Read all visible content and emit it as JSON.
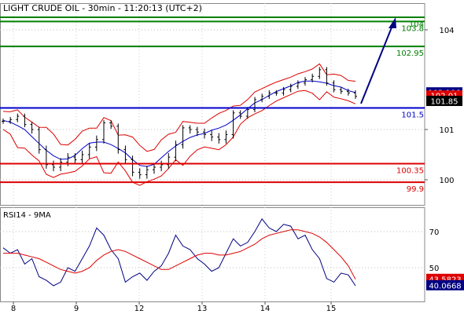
{
  "title": "LIGHT CRUDE OIL - 30min - 11:20:13 (UTC+2)",
  "chart_data": [
    {
      "type": "candlestick",
      "title": "LIGHT CRUDE OIL - 30min - 11:20:13 (UTC+2)",
      "y_ticks": [
        100,
        101,
        104
      ],
      "ylim": [
        99.7,
        104.3
      ],
      "x_ticks": [
        "8",
        "9",
        "12",
        "13",
        "14",
        "15"
      ],
      "levels": [
        {
          "label": "104",
          "value": 104.3,
          "color": "#008000"
        },
        {
          "label": "103.8",
          "value": 104.2,
          "color": "#008000"
        },
        {
          "label": "102.95",
          "value": 103.5,
          "color": "#008000"
        },
        {
          "label": "101.5",
          "value": 101.65,
          "color": "#0000cc"
        },
        {
          "label": "100.35",
          "value": 100.32,
          "color": "#dd0000"
        },
        {
          "label": "99.9",
          "value": 99.95,
          "color": "#dd0000"
        }
      ],
      "price_badges": [
        {
          "label": "102.106",
          "value": 102.106,
          "bg": "#000080"
        },
        {
          "label": "102.01",
          "value": 102.01,
          "bg": "#dd0000"
        },
        {
          "label": "101.85",
          "value": 101.85,
          "bg": "#000000"
        }
      ],
      "close_series": [
        101.25,
        101.3,
        101.4,
        101.15,
        101.0,
        100.6,
        100.3,
        100.25,
        100.35,
        100.45,
        100.4,
        100.5,
        100.65,
        100.8,
        101.2,
        101.1,
        100.6,
        100.4,
        100.15,
        100.1,
        100.2,
        100.25,
        100.3,
        100.45,
        100.7,
        101.05,
        101.0,
        100.95,
        100.9,
        100.85,
        100.8,
        100.9,
        101.5,
        101.4,
        101.6,
        101.9,
        102.0,
        102.1,
        102.1,
        102.2,
        102.3,
        102.4,
        102.5,
        102.6,
        102.8,
        102.4,
        102.2,
        102.15,
        102.1,
        102.0
      ]
    },
    {
      "type": "line",
      "title": "RSI14 - 9MA",
      "y_ticks": [
        50,
        70
      ],
      "ylim": [
        39,
        80
      ],
      "x_ticks": [
        "8",
        "9",
        "12",
        "13",
        "14",
        "15"
      ],
      "series": [
        {
          "name": "RSI14",
          "color": "#000080",
          "badge": "40.0668",
          "values": [
            61,
            58,
            60,
            52,
            55,
            45,
            43,
            40,
            42,
            50,
            48,
            55,
            62,
            72,
            68,
            60,
            55,
            42,
            45,
            47,
            43,
            48,
            51,
            58,
            68,
            62,
            60,
            55,
            52,
            48,
            50,
            58,
            66,
            62,
            64,
            70,
            77,
            72,
            70,
            74,
            73,
            66,
            68,
            60,
            55,
            44,
            42,
            47,
            46,
            40
          ]
        },
        {
          "name": "9MA",
          "color": "#dd0000",
          "badge": "43.5823",
          "values": [
            58,
            58,
            58,
            57,
            56,
            55,
            53,
            51,
            49,
            48,
            47,
            48,
            50,
            54,
            57,
            59,
            60,
            59,
            57,
            55,
            53,
            51,
            49,
            49,
            51,
            53,
            55,
            57,
            58,
            58,
            57,
            57,
            58,
            59,
            61,
            63,
            66,
            68,
            69,
            70,
            71,
            71,
            70,
            69,
            67,
            64,
            60,
            56,
            51,
            43.5823
          ]
        }
      ],
      "badges": [
        {
          "label": "43.5823",
          "value": 43.58,
          "bg": "#dd0000"
        },
        {
          "label": "40.0668",
          "value": 40.07,
          "bg": "#000080"
        }
      ]
    }
  ],
  "rsi_title": "RSI14 - 9MA"
}
